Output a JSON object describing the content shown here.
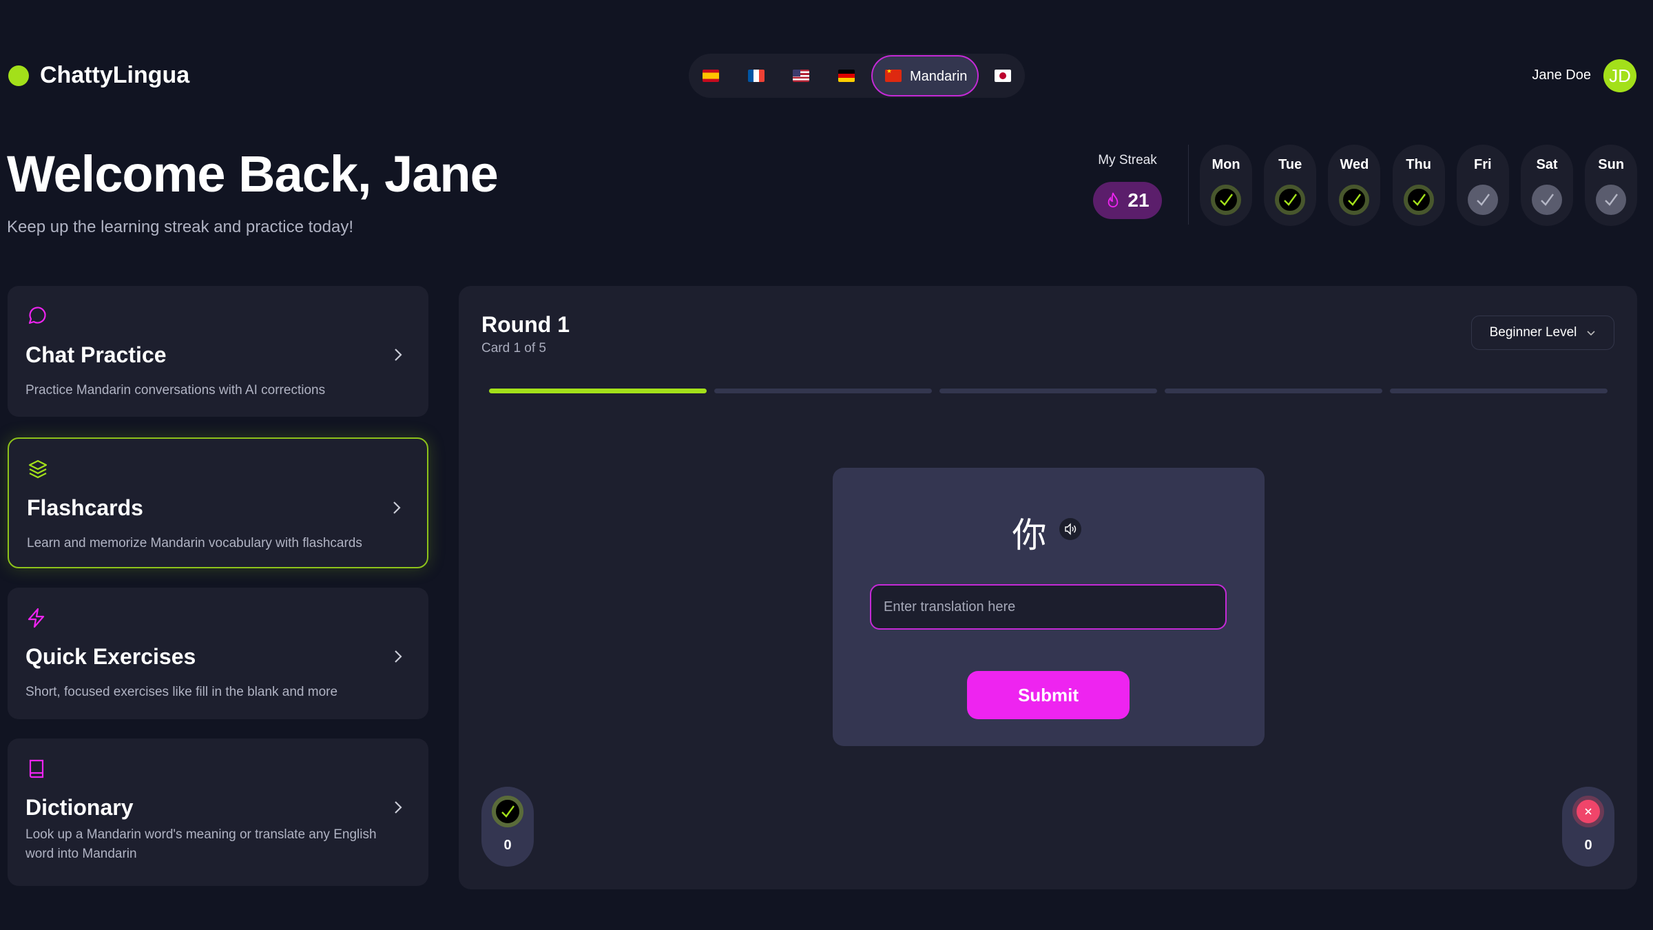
{
  "app": {
    "name": "ChattyLingua",
    "brand_color": "#a3e01a",
    "accent_color": "#ee24f0"
  },
  "languages": [
    {
      "flag": "spain-flag",
      "label": ""
    },
    {
      "flag": "france-flag",
      "label": ""
    },
    {
      "flag": "usa-flag",
      "label": ""
    },
    {
      "flag": "germany-flag",
      "label": ""
    },
    {
      "flag": "china-flag",
      "label": "Mandarin",
      "selected": true
    },
    {
      "flag": "japan-flag",
      "label": ""
    }
  ],
  "user": {
    "name": "Jane Doe",
    "initials": "JD"
  },
  "hero": {
    "title": "Welcome Back, Jane",
    "subtitle": "Keep up the learning streak and practice today!"
  },
  "streak": {
    "label": "My Streak",
    "count": "21",
    "icon": "flame-icon"
  },
  "week": [
    {
      "day": "Mon",
      "done": true
    },
    {
      "day": "Tue",
      "done": true
    },
    {
      "day": "Wed",
      "done": true
    },
    {
      "day": "Thu",
      "done": true
    },
    {
      "day": "Fri",
      "done": false
    },
    {
      "day": "Sat",
      "done": false
    },
    {
      "day": "Sun",
      "done": false
    }
  ],
  "modes": [
    {
      "title": "Chat Practice",
      "desc": "Practice Mandarin conversations with AI corrections",
      "icon": "chat-bubble-icon"
    },
    {
      "title": "Flashcards",
      "desc": "Learn and memorize Mandarin vocabulary with flashcards",
      "icon": "layers-icon",
      "active": true
    },
    {
      "title": "Quick Exercises",
      "desc": "Short, focused exercises like fill in the blank and more",
      "icon": "lightning-icon"
    },
    {
      "title": "Dictionary",
      "desc": "Look up a Mandarin word's meaning or translate any English word into Mandarin",
      "icon": "book-icon"
    }
  ],
  "session": {
    "round": "Round 1",
    "card_progress": "Card 1 of 5",
    "level": "Beginner Level",
    "progress_segments": [
      1,
      0,
      0,
      0,
      0
    ],
    "word": "你",
    "input_placeholder": "Enter translation here",
    "input_value": "",
    "submit_label": "Submit",
    "correct_count": "0",
    "wrong_count": "0"
  }
}
